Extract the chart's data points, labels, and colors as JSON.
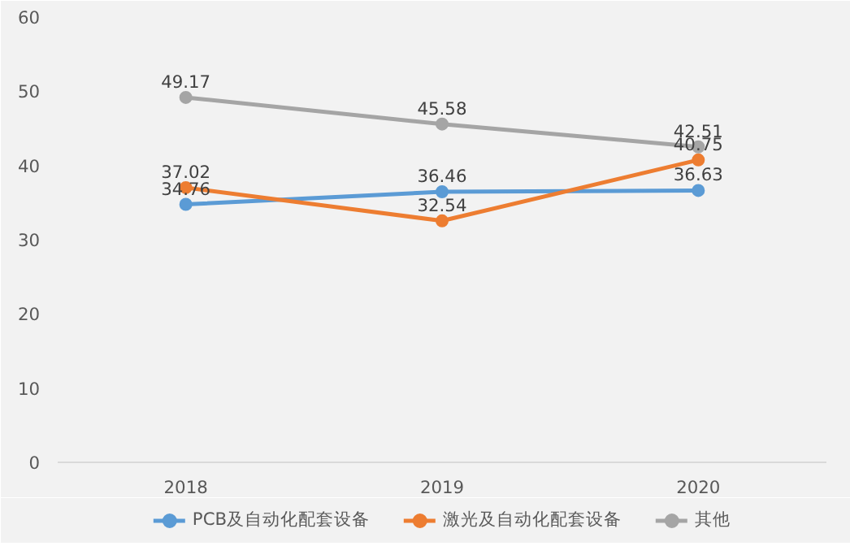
{
  "chart_data": {
    "type": "line",
    "categories": [
      "2018",
      "2019",
      "2020"
    ],
    "series": [
      {
        "name": "PCB及自动化配套设备",
        "color": "#5b9bd5",
        "values": [
          34.76,
          36.46,
          36.63
        ]
      },
      {
        "name": "激光及自动化配套设备",
        "color": "#ed7d31",
        "values": [
          37.02,
          32.54,
          40.75
        ]
      },
      {
        "name": "其他",
        "color": "#a5a5a5",
        "values": [
          49.17,
          45.58,
          42.51
        ]
      }
    ],
    "ylim": [
      0,
      60
    ],
    "yticks": [
      0,
      10,
      20,
      30,
      40,
      50,
      60
    ],
    "grid": false,
    "legend": "bottom",
    "marker": "circle",
    "line_style": "solid",
    "data_labels": true
  }
}
